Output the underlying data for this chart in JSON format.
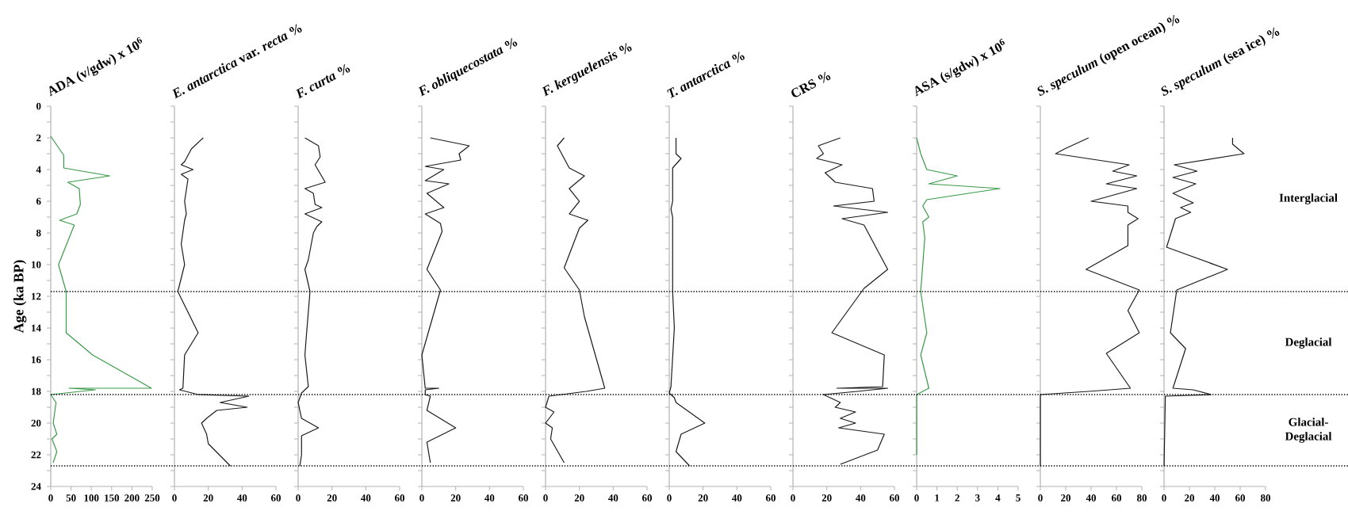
{
  "chart_data": [
    {
      "type": "line",
      "title": "ADA (v/gdw) x 10$^{6}$",
      "ylabel": "Age (ka BP)",
      "xlim": [
        0,
        250
      ],
      "xticks": [
        0,
        50,
        100,
        150,
        200,
        250
      ],
      "ylim": [
        24,
        0
      ],
      "yticks": [
        0,
        {
          "value": 1,
          "label": null
        },
        2,
        {
          "value": 3,
          "label": null
        },
        4,
        {
          "value": 5,
          "label": null
        },
        6,
        {
          "value": 7,
          "label": null
        },
        8,
        {
          "value": 9,
          "label": null
        },
        10,
        {
          "value": 11,
          "label": null
        },
        12,
        {
          "value": 13,
          "label": null
        },
        14,
        {
          "value": 15,
          "label": null
        },
        16,
        {
          "value": 17,
          "label": null
        },
        18,
        {
          "value": 19,
          "label": null
        },
        20,
        {
          "value": 21,
          "label": null
        },
        22,
        {
          "value": 23,
          "label": null
        },
        24
      ],
      "ref_lines": [
        {
          "axis": "y",
          "value": 11.7,
          "line_style": "dotted"
        },
        {
          "axis": "y",
          "value": 18.2,
          "line_style": "dotted"
        },
        {
          "axis": "y",
          "value": 22.7,
          "line_style": "dotted"
        }
      ],
      "series": [
        {
          "color": "#3a9a48",
          "x": [
            0,
            32,
            32,
            145,
            42,
            70,
            73,
            64,
            22,
            58,
            19,
            38,
            38,
            103,
            248,
            45,
            110,
            0,
            13,
            6,
            15,
            3,
            15,
            6
          ],
          "values": [
            1.9,
            3.1,
            3.9,
            4.4,
            4.8,
            5.2,
            6.2,
            6.8,
            7.2,
            7.5,
            10.0,
            11.7,
            14.3,
            15.7,
            17.8,
            17.8,
            17.9,
            18.2,
            18.7,
            20.0,
            20.7,
            21.0,
            21.8,
            22.5
          ]
        }
      ]
    },
    {
      "type": "line",
      "title": "*E. antarctica* var. *recta* %",
      "xlim": [
        0,
        60
      ],
      "xticks": [
        0,
        20,
        40,
        60
      ],
      "ylim": [
        24,
        0
      ],
      "tick_labels": "x",
      "yticks": [
        0,
        1,
        2,
        3,
        4,
        5,
        6,
        7,
        8,
        9,
        10,
        11,
        12,
        13,
        14,
        15,
        16,
        17,
        18,
        19,
        20,
        21,
        22,
        23,
        24
      ],
      "ref_lines": [
        {
          "axis": "y",
          "value": 11.7,
          "line_style": "dotted"
        },
        {
          "axis": "y",
          "value": 18.2,
          "line_style": "dotted"
        },
        {
          "axis": "y",
          "value": 22.7,
          "line_style": "dotted"
        }
      ],
      "series": [
        {
          "color": "#1a1a1a",
          "x": [
            17,
            10,
            6,
            4,
            11,
            4,
            8,
            6,
            7,
            6,
            4,
            6,
            2,
            14,
            6,
            5,
            3,
            14,
            44,
            27,
            43,
            25,
            19,
            16,
            19,
            20,
            33
          ],
          "values": [
            2.0,
            2.7,
            3.5,
            3.7,
            4.0,
            4.3,
            4.6,
            6.0,
            6.8,
            7.2,
            8.7,
            10.0,
            11.7,
            14.3,
            15.7,
            17.8,
            17.9,
            18.2,
            18.3,
            18.7,
            19.0,
            19.2,
            19.7,
            20.0,
            20.7,
            21.3,
            22.7
          ]
        }
      ]
    },
    {
      "type": "line",
      "title": "*F. curta* %",
      "xlim": [
        0,
        60
      ],
      "xticks": [
        0,
        20,
        40,
        60
      ],
      "ylim": [
        24,
        0
      ],
      "tick_labels": "x",
      "yticks": [
        0,
        1,
        2,
        3,
        4,
        5,
        6,
        7,
        8,
        9,
        10,
        11,
        12,
        13,
        14,
        15,
        16,
        17,
        18,
        19,
        20,
        21,
        22,
        23,
        24
      ],
      "ref_lines": [
        {
          "axis": "y",
          "value": 11.7,
          "line_style": "dotted"
        },
        {
          "axis": "y",
          "value": 18.2,
          "line_style": "dotted"
        },
        {
          "axis": "y",
          "value": 22.7,
          "line_style": "dotted"
        }
      ],
      "series": [
        {
          "color": "#1a1a1a",
          "x": [
            4,
            12,
            13,
            10,
            16,
            4,
            9,
            10,
            14,
            4,
            14,
            11,
            9,
            6,
            4,
            7,
            5,
            4,
            6,
            2,
            0,
            2,
            12,
            2,
            2,
            1
          ],
          "values": [
            2.0,
            2.5,
            3.2,
            3.7,
            4.8,
            5.2,
            5.5,
            6.2,
            6.4,
            6.8,
            7.3,
            7.6,
            8.0,
            9.7,
            10.3,
            11.7,
            14.3,
            15.7,
            17.7,
            18.1,
            18.7,
            19.7,
            20.3,
            20.8,
            22.0,
            22.7
          ]
        }
      ]
    },
    {
      "type": "line",
      "title": "*F. obliquecostata* %",
      "xlim": [
        0,
        60
      ],
      "xticks": [
        0,
        20,
        40,
        60
      ],
      "ylim": [
        24,
        0
      ],
      "tick_labels": "x",
      "yticks": [
        0,
        1,
        2,
        3,
        4,
        5,
        6,
        7,
        8,
        9,
        10,
        11,
        12,
        13,
        14,
        15,
        16,
        17,
        18,
        19,
        20,
        21,
        22,
        23,
        24
      ],
      "ref_lines": [
        {
          "axis": "y",
          "value": 11.7,
          "line_style": "dotted"
        },
        {
          "axis": "y",
          "value": 18.2,
          "line_style": "dotted"
        },
        {
          "axis": "y",
          "value": 22.7,
          "line_style": "dotted"
        }
      ],
      "series": [
        {
          "color": "#1a1a1a",
          "x": [
            5,
            28,
            22,
            23,
            2,
            13,
            2,
            16,
            3,
            13,
            2,
            11,
            12,
            3,
            11,
            0,
            2,
            10,
            2,
            2,
            5,
            3,
            20,
            3,
            5
          ],
          "values": [
            2.0,
            2.5,
            3.0,
            3.4,
            3.8,
            4.0,
            4.7,
            4.9,
            5.5,
            6.4,
            6.8,
            7.4,
            7.9,
            10.3,
            11.6,
            15.7,
            17.8,
            17.8,
            17.9,
            18.2,
            18.3,
            19.2,
            20.3,
            21.2,
            22.5
          ]
        }
      ]
    },
    {
      "type": "line",
      "title": "*F. kerguelensis* %",
      "xlim": [
        0,
        60
      ],
      "xticks": [
        0,
        20,
        40,
        60
      ],
      "ylim": [
        24,
        0
      ],
      "tick_labels": "x",
      "yticks": [
        0,
        1,
        2,
        3,
        4,
        5,
        6,
        7,
        8,
        9,
        10,
        11,
        12,
        13,
        14,
        15,
        16,
        17,
        18,
        19,
        20,
        21,
        22,
        23,
        24
      ],
      "ref_lines": [
        {
          "axis": "y",
          "value": 11.7,
          "line_style": "dotted"
        },
        {
          "axis": "y",
          "value": 18.2,
          "line_style": "dotted"
        },
        {
          "axis": "y",
          "value": 22.7,
          "line_style": "dotted"
        }
      ],
      "series": [
        {
          "color": "#1a1a1a",
          "x": [
            11,
            7,
            14,
            23,
            14,
            20,
            14,
            25,
            20,
            11,
            20,
            23,
            35,
            24,
            2,
            0,
            5,
            0,
            4,
            3,
            11
          ],
          "values": [
            2.0,
            2.5,
            3.9,
            4.4,
            5.2,
            6.0,
            6.8,
            7.2,
            7.7,
            10.2,
            11.6,
            13.3,
            17.8,
            18.0,
            18.3,
            19.0,
            19.3,
            20.0,
            20.3,
            21.0,
            22.5
          ]
        }
      ]
    },
    {
      "type": "line",
      "title": "*T. antarctica* %",
      "xlim": [
        0,
        60
      ],
      "xticks": [
        0,
        20,
        40,
        60
      ],
      "ylim": [
        24,
        0
      ],
      "tick_labels": "x",
      "yticks": [
        0,
        1,
        2,
        3,
        4,
        5,
        6,
        7,
        8,
        9,
        10,
        11,
        12,
        13,
        14,
        15,
        16,
        17,
        18,
        19,
        20,
        21,
        22,
        23,
        24
      ],
      "ref_lines": [
        {
          "axis": "y",
          "value": 11.7,
          "line_style": "dotted"
        },
        {
          "axis": "y",
          "value": 18.2,
          "line_style": "dotted"
        },
        {
          "axis": "y",
          "value": 22.7,
          "line_style": "dotted"
        }
      ],
      "series": [
        {
          "color": "#1a1a1a",
          "x": [
            4,
            4,
            7,
            2,
            2,
            1,
            2,
            2,
            3,
            1,
            0,
            3,
            4,
            21,
            7,
            4,
            12
          ],
          "values": [
            2.0,
            3.0,
            3.3,
            3.9,
            6.0,
            6.5,
            7.0,
            11.7,
            14.0,
            17.7,
            18.1,
            18.4,
            18.7,
            20.0,
            20.7,
            21.8,
            22.7
          ]
        }
      ]
    },
    {
      "type": "line",
      "title": "CRS %",
      "xlim": [
        0,
        60
      ],
      "xticks": [
        0,
        20,
        40,
        60
      ],
      "ylim": [
        24,
        0
      ],
      "tick_labels": "x",
      "yticks": [
        0,
        1,
        2,
        3,
        4,
        5,
        6,
        7,
        8,
        9,
        10,
        11,
        12,
        13,
        14,
        15,
        16,
        17,
        18,
        19,
        20,
        21,
        22,
        23,
        24
      ],
      "ref_lines": [
        {
          "axis": "y",
          "value": 11.7,
          "line_style": "dotted"
        },
        {
          "axis": "y",
          "value": 18.2,
          "line_style": "dotted"
        },
        {
          "axis": "y",
          "value": 22.7,
          "line_style": "dotted"
        }
      ],
      "series": [
        {
          "color": "#1a1a1a",
          "x": [
            28,
            15,
            18,
            14,
            29,
            19,
            25,
            47,
            48,
            24,
            56,
            29,
            42,
            56,
            42,
            23,
            54,
            53,
            26,
            56,
            38,
            18,
            28,
            25,
            37,
            28,
            37,
            27,
            54,
            50,
            28
          ],
          "values": [
            2.0,
            2.5,
            3.0,
            3.3,
            3.7,
            4.2,
            4.8,
            5.2,
            6.0,
            6.3,
            6.7,
            7.1,
            7.5,
            10.3,
            11.5,
            14.3,
            15.7,
            17.7,
            17.8,
            17.8,
            18.0,
            18.2,
            18.7,
            19.0,
            19.3,
            19.7,
            20.0,
            20.3,
            20.7,
            21.7,
            22.6
          ]
        }
      ]
    },
    {
      "type": "line",
      "title": "ASA (s/gdw) x 10$^{6}$",
      "xlim": [
        0,
        5
      ],
      "xticks": [
        0,
        1,
        2,
        3,
        4,
        5
      ],
      "ylim": [
        24,
        0
      ],
      "tick_labels": "x",
      "yticks": [
        0,
        1,
        2,
        3,
        4,
        5,
        6,
        7,
        8,
        9,
        10,
        11,
        12,
        13,
        14,
        15,
        16,
        17,
        18,
        19,
        20,
        21,
        22,
        23,
        24
      ],
      "ref_lines": [
        {
          "axis": "y",
          "value": 11.7,
          "line_style": "dotted"
        },
        {
          "axis": "y",
          "value": 18.2,
          "line_style": "dotted"
        },
        {
          "axis": "y",
          "value": 22.7,
          "line_style": "dotted"
        }
      ],
      "series": [
        {
          "color": "#3a9a48",
          "x": [
            0,
            0.2,
            0.5,
            2.0,
            0.6,
            4.1,
            0.5,
            0.3,
            0.6,
            0.3,
            0.4,
            0.2,
            0.5,
            0.2,
            0.6,
            0,
            0
          ],
          "values": [
            2.0,
            3.0,
            4.0,
            4.4,
            4.9,
            5.2,
            5.9,
            6.3,
            7.0,
            7.3,
            8.3,
            11.7,
            14.3,
            15.7,
            17.8,
            18.2,
            22.0
          ]
        }
      ]
    },
    {
      "type": "line",
      "title": "*S. speculum* (open ocean) %",
      "xlim": [
        0,
        80
      ],
      "xticks": [
        0,
        20,
        40,
        60,
        80
      ],
      "ylim": [
        24,
        0
      ],
      "tick_labels": "x",
      "yticks": [
        0,
        1,
        2,
        3,
        4,
        5,
        6,
        7,
        8,
        9,
        10,
        11,
        12,
        13,
        14,
        15,
        16,
        17,
        18,
        19,
        20,
        21,
        22,
        23,
        24
      ],
      "ref_lines": [
        {
          "axis": "y",
          "value": 11.7,
          "line_style": "dotted"
        },
        {
          "axis": "y",
          "value": 18.2,
          "line_style": "dotted"
        },
        {
          "axis": "y",
          "value": 22.7,
          "line_style": "dotted"
        }
      ],
      "series": [
        {
          "color": "#1a1a1a",
          "x": [
            38,
            19,
            12,
            70,
            57,
            76,
            52,
            76,
            40,
            69,
            69,
            77,
            69,
            69,
            36,
            78,
            69,
            78,
            52,
            71,
            38,
            0,
            0
          ],
          "values": [
            2.0,
            2.7,
            3.0,
            3.7,
            4.1,
            4.4,
            4.9,
            5.2,
            6.0,
            6.3,
            6.7,
            7.1,
            7.5,
            8.8,
            10.3,
            11.6,
            12.9,
            14.3,
            15.6,
            17.8,
            18.0,
            18.2,
            22.7
          ]
        }
      ]
    },
    {
      "type": "line",
      "title": "*S. speculum* (sea ice) %",
      "xlim": [
        0,
        80
      ],
      "xticks": [
        0,
        20,
        40,
        60,
        80
      ],
      "ylim": [
        24,
        0
      ],
      "tick_labels": "x",
      "yticks": [
        0,
        1,
        2,
        3,
        4,
        5,
        6,
        7,
        8,
        9,
        10,
        11,
        12,
        13,
        14,
        15,
        16,
        17,
        18,
        19,
        20,
        21,
        22,
        23,
        24
      ],
      "ref_lines": [
        {
          "axis": "y",
          "value": 11.7,
          "line_style": "dotted"
        },
        {
          "axis": "y",
          "value": 18.2,
          "line_style": "dotted"
        },
        {
          "axis": "y",
          "value": 22.7,
          "line_style": "dotted"
        }
      ],
      "annotations": [
        "Interglacial",
        "Deglacial",
        "Glacial-Deglacial"
      ],
      "series": [
        {
          "color": "#1a1a1a",
          "x": [
            54,
            54,
            63,
            8,
            26,
            7,
            25,
            7,
            23,
            13,
            21,
            9,
            2,
            50,
            10,
            5,
            17,
            7,
            23,
            37,
            1,
            0
          ],
          "values": [
            2.0,
            2.4,
            3.0,
            3.7,
            4.1,
            4.5,
            4.9,
            5.5,
            6.1,
            6.4,
            6.7,
            7.1,
            8.9,
            10.3,
            11.6,
            14.3,
            15.3,
            17.8,
            17.9,
            18.2,
            18.3,
            22.7
          ]
        }
      ]
    }
  ]
}
